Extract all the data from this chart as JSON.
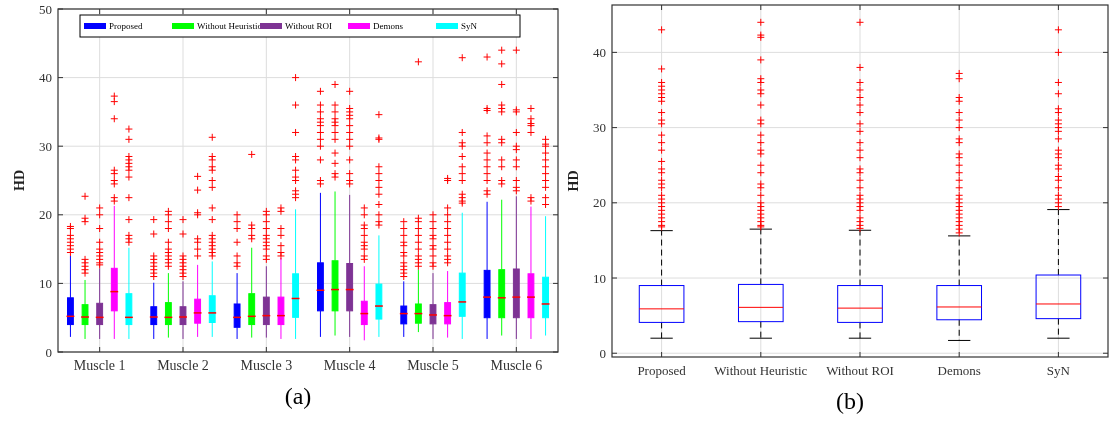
{
  "chart_data": [
    {
      "type": "box",
      "ylabel": "HD",
      "categories": [
        "Muscle 1",
        "Muscle 2",
        "Muscle 3",
        "Muscle 4",
        "Muscle 5",
        "Muscle 6"
      ],
      "ylim": [
        0,
        50
      ],
      "yticks": [
        0,
        10,
        20,
        30,
        40,
        50
      ],
      "grid": true,
      "legend": "top",
      "annotations": [
        "(a)"
      ],
      "series": [
        {
          "name": "Proposed",
          "color": "#0000ff",
          "boxes": [
            {
              "low": 2.2,
              "q1": 4.0,
              "median": 5.2,
              "q3": 7.9,
              "high": 14.0,
              "outliers": [
                14.5,
                15,
                15.5,
                16,
                16.5,
                17,
                18,
                18.3
              ]
            },
            {
              "low": 1.9,
              "q1": 4.0,
              "median": 5.1,
              "q3": 6.6,
              "high": 10.1,
              "outliers": [
                11,
                11.5,
                12,
                12.5,
                13,
                13.5,
                14,
                17.2,
                19.3
              ]
            },
            {
              "low": 1.9,
              "q1": 3.6,
              "median": 5.05,
              "q3": 7.0,
              "high": 11.5,
              "outliers": [
                12.5,
                13,
                14,
                16,
                18,
                19,
                20
              ]
            },
            {
              "low": 2.2,
              "q1": 6.0,
              "median": 9.0,
              "q3": 13.0,
              "high": 23.2,
              "outliers": [
                24.5,
                25,
                28,
                30,
                31,
                32,
                33,
                33.5,
                34,
                35,
                36,
                38
              ]
            },
            {
              "low": 2.2,
              "q1": 4.1,
              "median": 5.6,
              "q3": 6.7,
              "high": 10.3,
              "outliers": [
                11,
                11.5,
                12,
                12.5,
                13,
                14,
                14.5,
                15.5,
                16,
                17,
                18,
                19
              ]
            },
            {
              "low": 1.9,
              "q1": 5.0,
              "median": 8.0,
              "q3": 11.9,
              "high": 21.9,
              "outliers": [
                23,
                23.5,
                25,
                26,
                27,
                28,
                29,
                30.5,
                31.5,
                35.2,
                35.5,
                43
              ]
            }
          ]
        },
        {
          "name": "Without Heuristic",
          "color": "#00ff00",
          "boxes": [
            {
              "low": 1.9,
              "q1": 4.0,
              "median": 5.1,
              "q3": 6.9,
              "high": 10.5,
              "outliers": [
                11.5,
                12,
                12.5,
                13,
                13.5,
                19,
                19.5,
                22.7
              ]
            },
            {
              "low": 2.1,
              "q1": 4.0,
              "median": 5.05,
              "q3": 7.2,
              "high": 11.5,
              "outliers": [
                12.5,
                13,
                13.5,
                14,
                14.5,
                15,
                16,
                18,
                19,
                20,
                20.5
              ]
            },
            {
              "low": 2.1,
              "q1": 4.0,
              "median": 5.2,
              "q3": 8.5,
              "high": 15.2,
              "outliers": [
                16.5,
                17,
                18,
                18.5,
                28.8
              ]
            },
            {
              "low": 2.4,
              "q1": 6.0,
              "median": 9.1,
              "q3": 13.3,
              "high": 23.4,
              "outliers": [
                25.5,
                26,
                27.5,
                29,
                31,
                32,
                33,
                33.5,
                34,
                35,
                36,
                39
              ]
            },
            {
              "low": 2.9,
              "q1": 4.2,
              "median": 5.6,
              "q3": 7.0,
              "high": 12.0,
              "outliers": [
                12.5,
                13,
                13.5,
                14,
                15,
                16,
                17,
                18,
                19,
                19.5,
                42.3
              ]
            },
            {
              "low": 2.4,
              "q1": 5.0,
              "median": 7.9,
              "q3": 12.0,
              "high": 22.2,
              "outliers": [
                24.5,
                25,
                27,
                28,
                30.5,
                31,
                35,
                35.5,
                36,
                39,
                42,
                44
              ]
            }
          ]
        },
        {
          "name": "Without ROI",
          "color": "#7e3394",
          "boxes": [
            {
              "low": 1.9,
              "q1": 4.0,
              "median": 5.05,
              "q3": 7.1,
              "high": 12.2,
              "outliers": [
                12.7,
                13,
                13.5,
                14,
                14.5,
                15,
                16,
                18,
                20,
                21
              ]
            },
            {
              "low": 1.9,
              "q1": 4.0,
              "median": 5.1,
              "q3": 6.6,
              "high": 10.3,
              "outliers": [
                11,
                11.5,
                12,
                12.5,
                13,
                13.5,
                14,
                17.2,
                19.3
              ]
            },
            {
              "low": 2.1,
              "q1": 4.0,
              "median": 5.3,
              "q3": 8.0,
              "high": 12.5,
              "outliers": [
                13.5,
                14,
                15,
                15.5,
                16,
                16.5,
                17,
                18,
                19,
                20,
                20.5
              ]
            },
            {
              "low": 2.2,
              "q1": 6.0,
              "median": 9.1,
              "q3": 12.9,
              "high": 22.9,
              "outliers": [
                24.5,
                25,
                26,
                28,
                30,
                31,
                32,
                33,
                34,
                34.5,
                35,
                35.5,
                38
              ]
            },
            {
              "low": 1.9,
              "q1": 4.1,
              "median": 5.4,
              "q3": 6.9,
              "high": 11.5,
              "outliers": [
                12.5,
                13,
                14,
                15,
                15.5,
                16.5,
                17,
                18,
                19,
                20
              ]
            },
            {
              "low": 1.9,
              "q1": 5.0,
              "median": 8.0,
              "q3": 12.1,
              "high": 22.7,
              "outliers": [
                23.5,
                24,
                25,
                27,
                28,
                29.5,
                30,
                32,
                35,
                35.3,
                44
              ]
            }
          ]
        },
        {
          "name": "Demons",
          "color": "#ff00ff",
          "boxes": [
            {
              "low": 1.9,
              "q1": 6.0,
              "median": 8.8,
              "q3": 12.2,
              "high": 21.3,
              "outliers": [
                22,
                22.5,
                24.5,
                25,
                26,
                26.5,
                34,
                36.5,
                37.3
              ]
            },
            {
              "low": 2.2,
              "q1": 4.2,
              "median": 5.7,
              "q3": 7.7,
              "high": 12.7,
              "outliers": [
                14,
                15,
                16,
                16.5,
                20,
                20.3,
                23.6,
                25.6
              ]
            },
            {
              "low": 1.9,
              "q1": 4.0,
              "median": 5.3,
              "q3": 8.0,
              "high": 13.7,
              "outliers": [
                14,
                14.5,
                15.5,
                17,
                18,
                20.5,
                21
              ]
            },
            {
              "low": 1.7,
              "q1": 4.0,
              "median": 5.6,
              "q3": 7.4,
              "high": 12.5,
              "outliers": [
                13.5,
                14,
                15,
                15.5,
                16,
                17,
                18,
                18.5,
                20,
                21
              ]
            },
            {
              "low": 2.1,
              "q1": 4.1,
              "median": 5.3,
              "q3": 7.2,
              "high": 11.8,
              "outliers": [
                13,
                13.5,
                14,
                15,
                16,
                17,
                18,
                19,
                20,
                21,
                25,
                25.3
              ]
            },
            {
              "low": 1.9,
              "q1": 5.0,
              "median": 8.0,
              "q3": 11.4,
              "high": 21.2,
              "outliers": [
                22,
                22.5,
                32,
                33,
                33.3,
                34,
                35.5
              ]
            }
          ]
        },
        {
          "name": "SyN",
          "color": "#00ffff",
          "boxes": [
            {
              "low": 1.9,
              "q1": 4.0,
              "median": 5.05,
              "q3": 8.5,
              "high": 15.2,
              "outliers": [
                16,
                16.5,
                17,
                19.3,
                22.5,
                25.5,
                26.5,
                27,
                27.5,
                28,
                28.5,
                31,
                32.5
              ]
            },
            {
              "low": 2.2,
              "q1": 4.3,
              "median": 5.7,
              "q3": 8.2,
              "high": 13.2,
              "outliers": [
                14,
                14.5,
                15,
                15.5,
                16,
                16.5,
                17,
                19.3,
                21,
                24,
                25,
                26.5,
                27,
                28,
                28.5,
                31.3
              ]
            },
            {
              "low": 1.9,
              "q1": 5.05,
              "median": 7.8,
              "q3": 11.4,
              "high": 20.8,
              "outliers": [
                22.5,
                23,
                23.5,
                25,
                25.5,
                26.5,
                28,
                28.5,
                32,
                36,
                40
              ]
            },
            {
              "low": 2.2,
              "q1": 4.8,
              "median": 6.7,
              "q3": 9.9,
              "high": 17,
              "outliers": [
                18.5,
                19,
                20,
                21.5,
                23,
                24,
                25,
                26,
                27,
                31,
                31.2,
                34.6
              ]
            },
            {
              "low": 1.9,
              "q1": 5.2,
              "median": 7.3,
              "q3": 11.5,
              "high": 20.3,
              "outliers": [
                21.7,
                22,
                22.5,
                23,
                25,
                26,
                27,
                28.5,
                30,
                30.5,
                32,
                42.9
              ]
            },
            {
              "low": 2.4,
              "q1": 5.0,
              "median": 7.0,
              "q3": 10.9,
              "high": 19.8,
              "outliers": [
                21.5,
                22.5,
                24,
                25,
                26,
                27,
                28,
                29,
                30,
                30.3,
                31
              ]
            }
          ]
        }
      ]
    },
    {
      "type": "box",
      "ylabel": "HD",
      "categories": [
        "Proposed",
        "Without Heuristic",
        "Without ROI",
        "Demons",
        "SyN"
      ],
      "ylim": [
        -0.5,
        46.3
      ],
      "yticks": [
        0,
        10,
        20,
        30,
        40
      ],
      "grid": true,
      "annotations": [
        "(b)"
      ],
      "series": [
        {
          "color": "#0000ff",
          "boxes": [
            {
              "low": 2.0,
              "q1": 4.1,
              "median": 5.9,
              "q3": 9.0,
              "high": 16.3,
              "outliers": [
                16.8,
                17,
                17.5,
                18,
                18.5,
                19,
                19.5,
                20,
                20.5,
                21,
                22,
                22.5,
                23,
                24,
                24.5,
                25.5,
                27,
                28,
                29,
                30.5,
                31,
                32,
                33.5,
                34,
                34.5,
                35,
                35.5,
                36,
                37.8,
                43
              ]
            },
            {
              "low": 2.0,
              "q1": 4.2,
              "median": 6.1,
              "q3": 9.15,
              "high": 16.5,
              "outliers": [
                16.8,
                17,
                17.5,
                18,
                18.5,
                19,
                19.5,
                20,
                21,
                22,
                22.5,
                24,
                25,
                26.5,
                27,
                28,
                29,
                30.5,
                31,
                33,
                34.5,
                35,
                36,
                36.5,
                39,
                42,
                42.3,
                44
              ]
            },
            {
              "low": 2.0,
              "q1": 4.1,
              "median": 6.0,
              "q3": 9.0,
              "high": 16.35,
              "outliers": [
                16.6,
                17,
                17.5,
                18,
                19,
                19.5,
                20,
                20.5,
                21,
                22,
                23,
                24,
                24.5,
                26,
                27,
                28,
                29.5,
                30.5,
                32,
                33,
                34,
                35,
                36,
                38,
                44
              ]
            },
            {
              "low": 1.7,
              "q1": 4.45,
              "median": 6.15,
              "q3": 9.0,
              "high": 15.6,
              "outliers": [
                16,
                16.5,
                17,
                17.5,
                18,
                18.5,
                19,
                19.5,
                20,
                20.5,
                21,
                22,
                23,
                24,
                25,
                26,
                26.5,
                28,
                28.5,
                30,
                31,
                32,
                33.5,
                34,
                36.5,
                37.2
              ]
            },
            {
              "low": 2.0,
              "q1": 4.6,
              "median": 6.55,
              "q3": 10.4,
              "high": 19.1,
              "outliers": [
                19.5,
                20,
                20.5,
                21,
                22,
                23,
                23.5,
                24.5,
                25,
                26,
                26.5,
                27,
                28.5,
                29.5,
                30,
                30.5,
                31,
                32,
                32.5,
                34.5,
                36,
                40,
                43
              ]
            }
          ]
        }
      ]
    }
  ]
}
